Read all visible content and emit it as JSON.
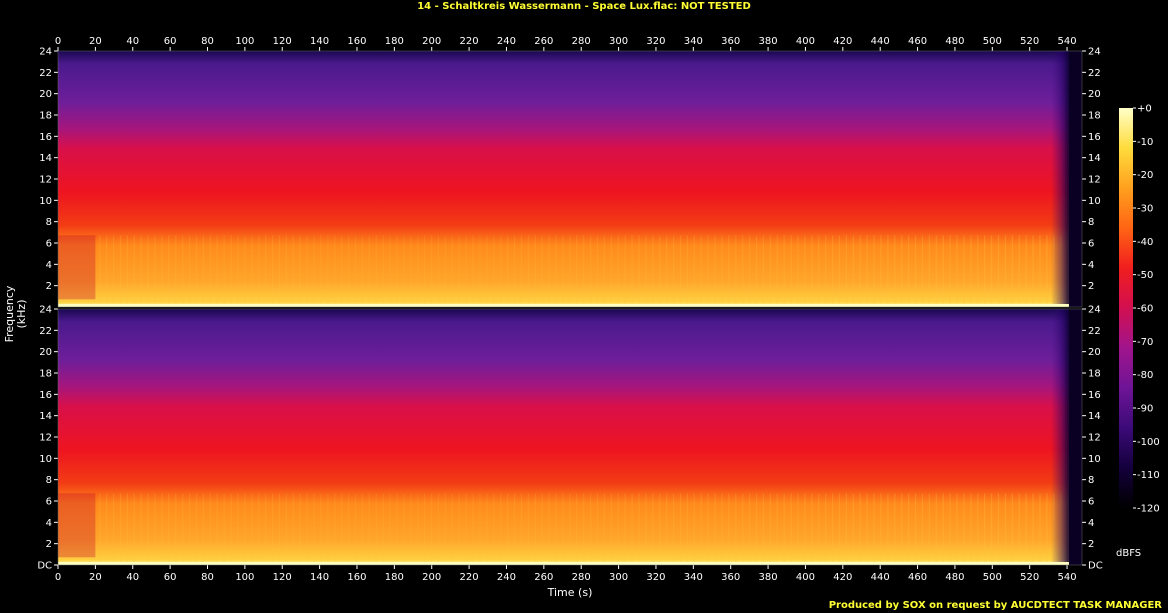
{
  "title": "14 - Schaltkreis Wassermann - Space Lux.flac: NOT TESTED",
  "footer": "Produced by SOX on request by AUCDTECT TASK MANAGER",
  "chart_data": {
    "type": "heatmap",
    "title": "14 - Schaltkreis Wassermann - Space Lux.flac: NOT TESTED",
    "xlabel": "Time (s)",
    "ylabel": "Frequency (kHz)",
    "colorbar_label": "dBFS",
    "xlim": [
      0,
      548
    ],
    "ylim": [
      0,
      24
    ],
    "x_ticks": [
      "0",
      "20",
      "40",
      "60",
      "80",
      "100",
      "120",
      "140",
      "160",
      "180",
      "200",
      "220",
      "240",
      "260",
      "280",
      "300",
      "320",
      "340",
      "360",
      "380",
      "400",
      "420",
      "440",
      "460",
      "480",
      "500",
      "520",
      "540"
    ],
    "y_ticks": [
      "DC",
      "2",
      "4",
      "6",
      "8",
      "10",
      "12",
      "14",
      "16",
      "18",
      "20",
      "22",
      "24"
    ],
    "colorbar_ticks": [
      "+0",
      "-10",
      "-20",
      "-30",
      "-40",
      "-50",
      "-60",
      "-70",
      "-80",
      "-90",
      "-100",
      "-110",
      "-120"
    ],
    "colorbar_range": [
      -120,
      0
    ],
    "channels": [
      "left",
      "right"
    ],
    "colors": [
      "#000000",
      "#14003c",
      "#3c0a78",
      "#6e1496",
      "#a0148c",
      "#d20f50",
      "#f01e1e",
      "#ff6414",
      "#ffa01e",
      "#ffdc3c",
      "#ffffc8"
    ]
  }
}
